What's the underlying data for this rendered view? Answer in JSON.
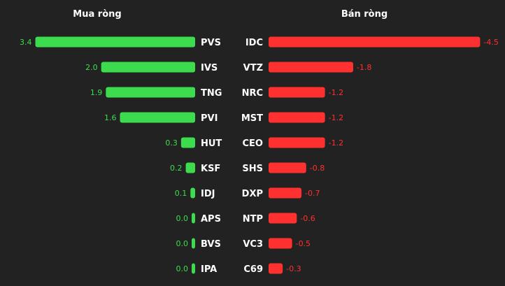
{
  "chart_data": [
    {
      "type": "bar",
      "orientation": "horizontal",
      "title": "Mua ròng",
      "color": "#3ddc4f",
      "categories": [
        "PVS",
        "IVS",
        "TNG",
        "PVI",
        "HUT",
        "KSF",
        "IDJ",
        "APS",
        "BVS",
        "IPA"
      ],
      "values": [
        3.4,
        2.0,
        1.9,
        1.6,
        0.3,
        0.2,
        0.1,
        0.0,
        0.0,
        0.0
      ],
      "value_labels": [
        "3.4",
        "2.0",
        "1.9",
        "1.6",
        "0.3",
        "0.2",
        "0.1",
        "0.0",
        "0.0",
        "0.0"
      ]
    },
    {
      "type": "bar",
      "orientation": "horizontal",
      "title": "Bán ròng",
      "color": "#ff3030",
      "categories": [
        "IDC",
        "VTZ",
        "NRC",
        "MST",
        "CEO",
        "SHS",
        "DXP",
        "NTP",
        "VC3",
        "C69"
      ],
      "values": [
        -4.5,
        -1.8,
        -1.2,
        -1.2,
        -1.2,
        -0.8,
        -0.7,
        -0.6,
        -0.5,
        -0.3
      ],
      "value_labels": [
        "-4.5",
        "-1.8",
        "-1.2",
        "-1.2",
        "-1.2",
        "-0.8",
        "-0.7",
        "-0.6",
        "-0.5",
        "-0.3"
      ]
    }
  ]
}
